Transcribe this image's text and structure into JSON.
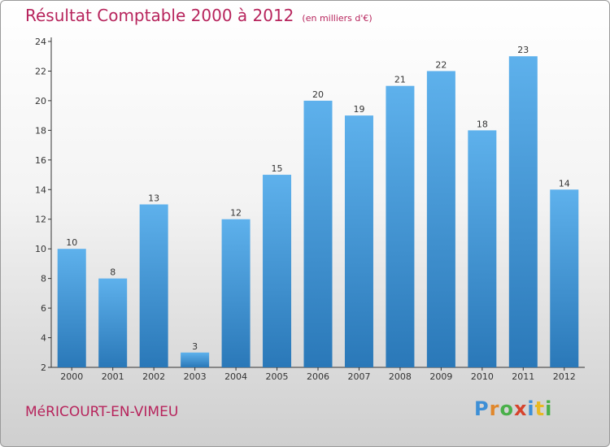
{
  "header": {
    "title": "Résultat Comptable 2000 à 2012",
    "subtitle": "(en milliers d'€)"
  },
  "footer": {
    "commune": "MéRICOURT-EN-VIMEU",
    "logo_letters": [
      "P",
      "r",
      "o",
      "x",
      "i",
      "t",
      "i"
    ]
  },
  "colors": {
    "bar": "#4a9fe0",
    "bar_dark": "#2f7fc0",
    "title": "#b7245c"
  },
  "chart_data": {
    "type": "bar",
    "title": "Résultat Comptable 2000 à 2012",
    "subtitle": "(en milliers d'€)",
    "categories": [
      "2000",
      "2001",
      "2002",
      "2003",
      "2004",
      "2005",
      "2006",
      "2007",
      "2008",
      "2009",
      "2010",
      "2011",
      "2012"
    ],
    "values": [
      10,
      8,
      13,
      3,
      12,
      15,
      20,
      19,
      21,
      22,
      18,
      23,
      14
    ],
    "ylim": [
      2,
      24
    ],
    "yticks": [
      2,
      4,
      6,
      8,
      10,
      12,
      14,
      16,
      18,
      20,
      22,
      24
    ],
    "grid": false,
    "xlabel": "",
    "ylabel": ""
  }
}
